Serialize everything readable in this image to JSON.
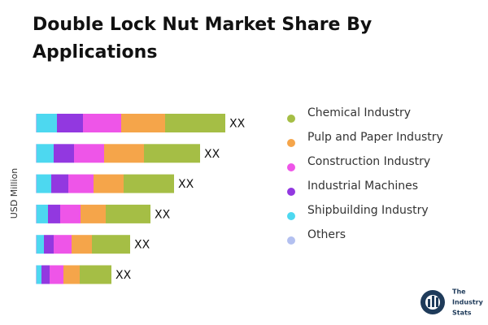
{
  "chart_data": {
    "type": "stacked-bar-horizontal",
    "title": "Double Lock Nut Market Share By Applications",
    "y_axis_label": "USD Million",
    "categories": [
      null,
      null,
      null,
      null,
      null,
      null
    ],
    "series": [
      {
        "name": "Chemical Industry",
        "color": "#a5be45",
        "values": [
          74,
          69,
          62,
          55,
          47,
          39
        ]
      },
      {
        "name": "Pulp and Paper Industry",
        "color": "#f5a54a",
        "values": [
          54,
          49,
          37,
          31,
          25,
          20
        ]
      },
      {
        "name": "Construction Industry",
        "color": "#ee55e8",
        "values": [
          47,
          37,
          31,
          25,
          22,
          17
        ]
      },
      {
        "name": "Industrial Machines",
        "color": "#9238e0",
        "values": [
          32,
          25,
          21,
          15,
          12,
          10
        ]
      },
      {
        "name": "Shipbuilding Industry",
        "color": "#4dd8f0",
        "values": [
          25,
          21,
          18,
          14,
          9,
          6
        ]
      },
      {
        "name": "Others",
        "color": "#b3c0f0",
        "values": [
          1,
          1,
          1,
          1,
          1,
          1
        ]
      }
    ],
    "total_labels": [
      "XX",
      "XX",
      "XX",
      "XX",
      "XX",
      "XX"
    ]
  },
  "logo": [
    "The",
    "Industry",
    "Stats"
  ]
}
